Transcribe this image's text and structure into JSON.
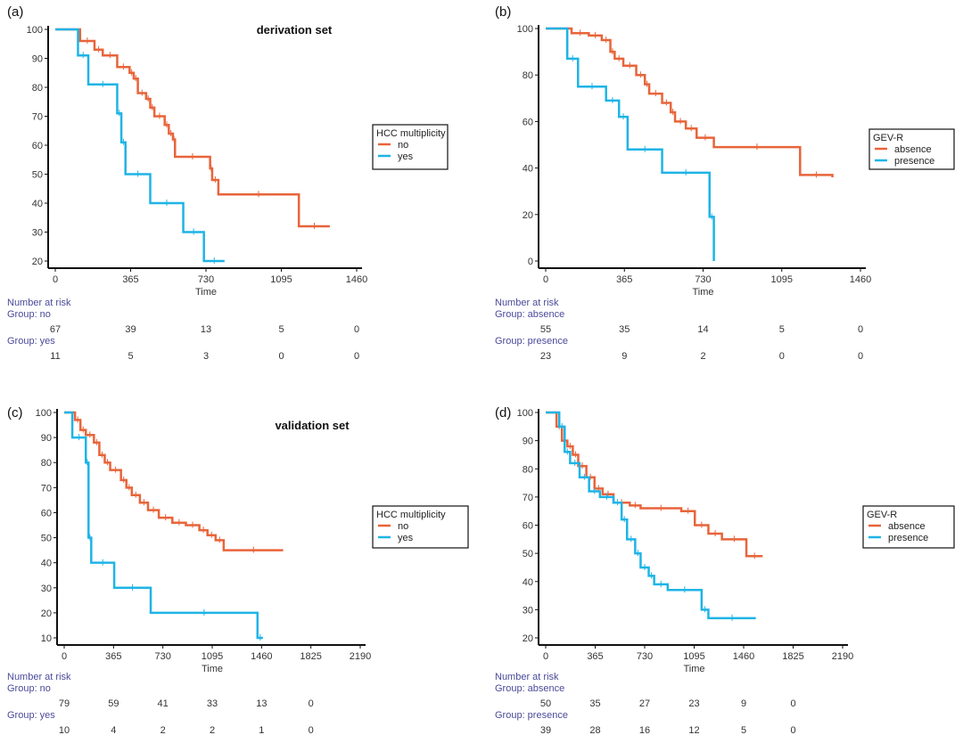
{
  "chart_data": [
    {
      "panel": "(a)",
      "type": "line",
      "title": "derivation set",
      "xlabel": "Time",
      "xticks": [
        "0",
        "365",
        "730",
        "1095",
        "1460"
      ],
      "xlim": [
        0,
        1460
      ],
      "ylim": [
        20,
        100
      ],
      "yticks": [
        "20",
        "30",
        "40",
        "50",
        "60",
        "70",
        "80",
        "90",
        "100"
      ],
      "legend": {
        "title": "HCC multiplicity",
        "placement": "right"
      },
      "series": [
        {
          "name": "no",
          "color": "#e8643a",
          "points": [
            [
              0,
              100
            ],
            [
              120,
              96
            ],
            [
              190,
              93
            ],
            [
              230,
              91
            ],
            [
              300,
              87
            ],
            [
              360,
              85
            ],
            [
              380,
              83
            ],
            [
              400,
              78
            ],
            [
              440,
              76
            ],
            [
              460,
              73
            ],
            [
              480,
              70
            ],
            [
              530,
              67
            ],
            [
              550,
              64
            ],
            [
              570,
              62
            ],
            [
              580,
              56
            ],
            [
              750,
              52
            ],
            [
              760,
              48
            ],
            [
              790,
              43
            ],
            [
              1180,
              32
            ],
            [
              1330,
              32
            ]
          ]
        },
        {
          "name": "yes",
          "color": "#1eb4e6",
          "points": [
            [
              0,
              100
            ],
            [
              110,
              91
            ],
            [
              160,
              81
            ],
            [
              300,
              71
            ],
            [
              320,
              61
            ],
            [
              340,
              50
            ],
            [
              460,
              40
            ],
            [
              620,
              30
            ],
            [
              720,
              20
            ],
            [
              820,
              20
            ]
          ]
        }
      ],
      "risk": {
        "header": "Number at risk",
        "groups": [
          {
            "label": "Group: no",
            "values": [
              "67",
              "39",
              "13",
              "5",
              "0"
            ]
          },
          {
            "label": "Group: yes",
            "values": [
              "11",
              "5",
              "3",
              "0",
              "0"
            ]
          }
        ]
      }
    },
    {
      "panel": "(b)",
      "type": "line",
      "title": "",
      "xlabel": "Time",
      "xticks": [
        "0",
        "365",
        "730",
        "1095",
        "1460"
      ],
      "xlim": [
        0,
        1460
      ],
      "ylim": [
        0,
        100
      ],
      "yticks": [
        "0",
        "20",
        "40",
        "60",
        "80",
        "100"
      ],
      "legend": {
        "title": "GEV-R",
        "placement": "right"
      },
      "series": [
        {
          "name": "absence",
          "color": "#e8643a",
          "points": [
            [
              0,
              100
            ],
            [
              120,
              98
            ],
            [
              200,
              97
            ],
            [
              260,
              95
            ],
            [
              300,
              90
            ],
            [
              320,
              87
            ],
            [
              360,
              84
            ],
            [
              420,
              80
            ],
            [
              460,
              76
            ],
            [
              480,
              72
            ],
            [
              540,
              68
            ],
            [
              580,
              64
            ],
            [
              600,
              60
            ],
            [
              650,
              57
            ],
            [
              700,
              53
            ],
            [
              780,
              49
            ],
            [
              1180,
              37
            ],
            [
              1330,
              36
            ]
          ]
        },
        {
          "name": "presence",
          "color": "#1eb4e6",
          "points": [
            [
              0,
              100
            ],
            [
              100,
              87
            ],
            [
              150,
              75
            ],
            [
              280,
              69
            ],
            [
              340,
              62
            ],
            [
              380,
              48
            ],
            [
              540,
              38
            ],
            [
              760,
              19
            ],
            [
              780,
              0
            ]
          ]
        }
      ],
      "risk": {
        "header": "Number at risk",
        "groups": [
          {
            "label": "Group: absence",
            "values": [
              "55",
              "35",
              "14",
              "5",
              "0"
            ]
          },
          {
            "label": "Group: presence",
            "values": [
              "23",
              "9",
              "2",
              "0",
              "0"
            ]
          }
        ]
      }
    },
    {
      "panel": "(c)",
      "type": "line",
      "title": "validation set",
      "xlabel": "Time",
      "xticks": [
        "0",
        "365",
        "730",
        "1095",
        "1460",
        "1825",
        "2190"
      ],
      "xlim": [
        0,
        2190
      ],
      "ylim": [
        10,
        100
      ],
      "yticks": [
        "10",
        "20",
        "30",
        "40",
        "50",
        "60",
        "70",
        "80",
        "90",
        "100"
      ],
      "legend": {
        "title": "HCC multiplicity",
        "placement": "right"
      },
      "series": [
        {
          "name": "no",
          "color": "#e8643a",
          "points": [
            [
              0,
              100
            ],
            [
              80,
              97
            ],
            [
              120,
              93
            ],
            [
              160,
              91
            ],
            [
              220,
              88
            ],
            [
              260,
              83
            ],
            [
              300,
              80
            ],
            [
              340,
              77
            ],
            [
              420,
              73
            ],
            [
              460,
              70
            ],
            [
              500,
              67
            ],
            [
              560,
              64
            ],
            [
              620,
              61
            ],
            [
              700,
              58
            ],
            [
              800,
              56
            ],
            [
              900,
              55
            ],
            [
              1000,
              53
            ],
            [
              1060,
              51
            ],
            [
              1120,
              49
            ],
            [
              1180,
              45
            ],
            [
              1620,
              45
            ]
          ]
        },
        {
          "name": "yes",
          "color": "#1eb4e6",
          "points": [
            [
              0,
              100
            ],
            [
              60,
              90
            ],
            [
              160,
              80
            ],
            [
              180,
              50
            ],
            [
              200,
              40
            ],
            [
              370,
              30
            ],
            [
              640,
              20
            ],
            [
              1430,
              10
            ],
            [
              1470,
              10
            ]
          ]
        }
      ],
      "risk": {
        "header": "Number at risk",
        "groups": [
          {
            "label": "Group: no",
            "values": [
              "79",
              "59",
              "41",
              "33",
              "13",
              "0"
            ]
          },
          {
            "label": "Group: yes",
            "values": [
              "10",
              "4",
              "2",
              "2",
              "1",
              "0"
            ]
          }
        ]
      }
    },
    {
      "panel": "(d)",
      "type": "line",
      "title": "",
      "xlabel": "Time",
      "xticks": [
        "0",
        "365",
        "730",
        "1095",
        "1460",
        "1825",
        "2190"
      ],
      "xlim": [
        0,
        2190
      ],
      "ylim": [
        20,
        100
      ],
      "yticks": [
        "20",
        "30",
        "40",
        "50",
        "60",
        "70",
        "80",
        "90",
        "100"
      ],
      "legend": {
        "title": "GEV-R",
        "placement": "right"
      },
      "series": [
        {
          "name": "absence",
          "color": "#e8643a",
          "points": [
            [
              0,
              100
            ],
            [
              80,
              95
            ],
            [
              120,
              90
            ],
            [
              160,
              88
            ],
            [
              200,
              85
            ],
            [
              240,
              81
            ],
            [
              300,
              77
            ],
            [
              360,
              73
            ],
            [
              420,
              71
            ],
            [
              500,
              68
            ],
            [
              620,
              67
            ],
            [
              700,
              66
            ],
            [
              1000,
              65
            ],
            [
              1100,
              60
            ],
            [
              1200,
              57
            ],
            [
              1300,
              55
            ],
            [
              1480,
              49
            ],
            [
              1600,
              49
            ]
          ]
        },
        {
          "name": "presence",
          "color": "#1eb4e6",
          "points": [
            [
              0,
              100
            ],
            [
              100,
              95
            ],
            [
              140,
              86
            ],
            [
              180,
              82
            ],
            [
              250,
              77
            ],
            [
              320,
              72
            ],
            [
              400,
              70
            ],
            [
              500,
              68
            ],
            [
              560,
              62
            ],
            [
              600,
              55
            ],
            [
              660,
              50
            ],
            [
              700,
              45
            ],
            [
              760,
              42
            ],
            [
              800,
              39
            ],
            [
              900,
              37
            ],
            [
              1150,
              30
            ],
            [
              1200,
              27
            ],
            [
              1550,
              27
            ]
          ]
        }
      ],
      "risk": {
        "header": "Number at risk",
        "groups": [
          {
            "label": "Group: absence",
            "values": [
              "50",
              "35",
              "27",
              "23",
              "9",
              "0"
            ]
          },
          {
            "label": "Group: presence",
            "values": [
              "39",
              "28",
              "16",
              "12",
              "5",
              "0"
            ]
          }
        ]
      }
    }
  ]
}
